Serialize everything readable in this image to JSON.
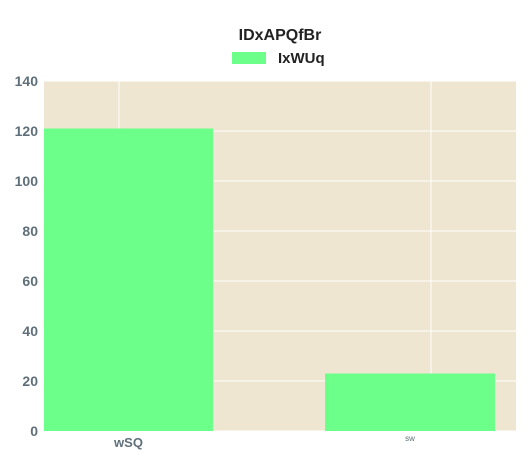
{
  "chart_data": {
    "type": "bar",
    "title": "IDxAPQfBr",
    "categories": [
      "wSQ",
      "sw"
    ],
    "series": [
      {
        "name": "IxWUq",
        "values": [
          121,
          23
        ],
        "color": "#6cff8a"
      }
    ],
    "xlabel": "",
    "ylabel": "",
    "ylim": [
      0,
      140
    ],
    "yticks": [
      0,
      20,
      40,
      60,
      80,
      100,
      120,
      140
    ],
    "grid": true,
    "legend_position": "top-center",
    "plot_background": "#efe6d2",
    "grid_color": "#ffffff",
    "tick_label_color": "#5f6f7a"
  }
}
